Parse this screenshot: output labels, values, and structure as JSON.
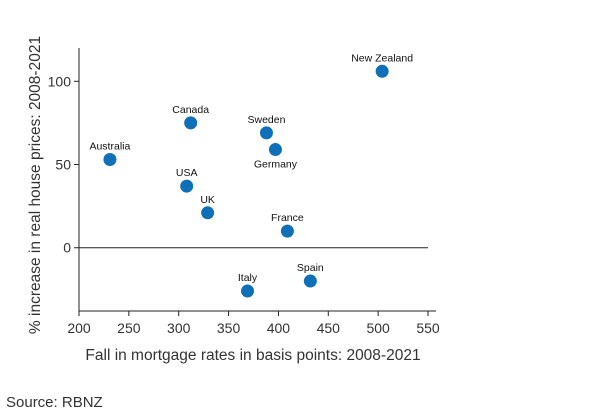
{
  "chart_data": {
    "type": "scatter",
    "title": "",
    "xlabel": "Fall in mortgage rates in basis points: 2008-2021",
    "ylabel": "% increase in real house prices: 2008-2021",
    "xlim": [
      200,
      550
    ],
    "ylim": [
      -38,
      120
    ],
    "xticks": [
      200,
      250,
      300,
      350,
      400,
      450,
      500,
      550
    ],
    "yticks": [
      0,
      50,
      100
    ],
    "grid": false,
    "point_color": "#0f6fb8",
    "points": [
      {
        "label": "New Zealand",
        "x": 504,
        "y": 106
      },
      {
        "label": "Canada",
        "x": 312,
        "y": 75
      },
      {
        "label": "Sweden",
        "x": 388,
        "y": 69
      },
      {
        "label": "Germany",
        "x": 397,
        "y": 59
      },
      {
        "label": "Australia",
        "x": 231,
        "y": 53
      },
      {
        "label": "USA",
        "x": 308,
        "y": 37
      },
      {
        "label": "UK",
        "x": 329,
        "y": 21
      },
      {
        "label": "France",
        "x": 409,
        "y": 10
      },
      {
        "label": "Italy",
        "x": 369,
        "y": -26
      },
      {
        "label": "Spain",
        "x": 432,
        "y": -20
      }
    ]
  },
  "source": "Source: RBNZ"
}
